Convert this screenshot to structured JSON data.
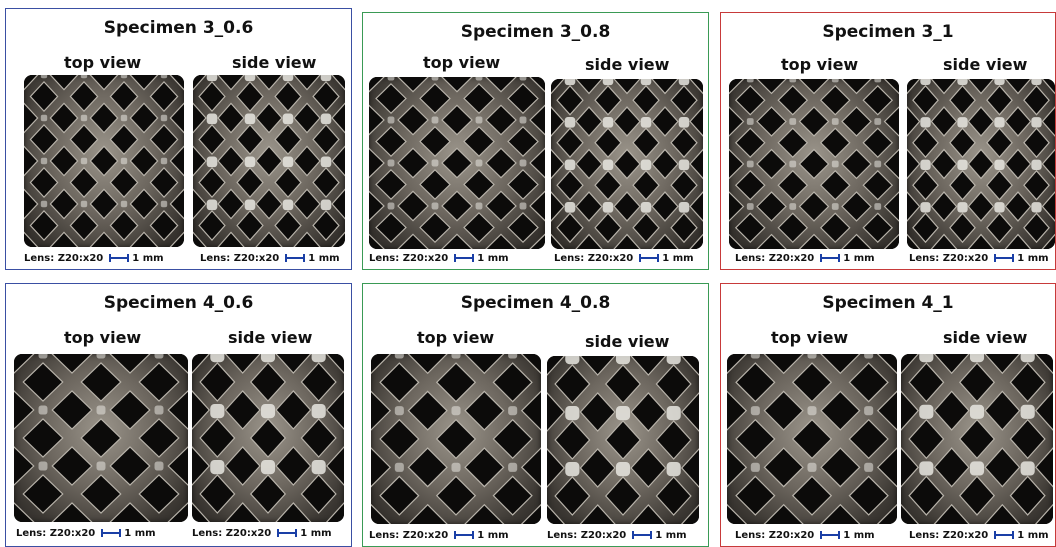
{
  "panels": [
    {
      "title": "Specimen 3_0.6",
      "border": "#3a4fa3",
      "views": [
        "top view",
        "side view"
      ],
      "captions": [
        "Lens: Z20:x20",
        "1 mm",
        "Lens: Z20:x20",
        "1 mm"
      ]
    },
    {
      "title": "Specimen 3_0.8",
      "border": "#3a9a55",
      "views": [
        "top view",
        "side view"
      ],
      "captions": [
        "Lens: Z20:x20",
        "1 mm",
        "Lens: Z20:x20",
        "1 mm"
      ]
    },
    {
      "title": "Specimen 3_1",
      "border": "#c73a3a",
      "views": [
        "top view",
        "side view"
      ],
      "captions": [
        "Lens: Z20:x20",
        "1 mm",
        "Lens: Z20:x20",
        "1 mm"
      ]
    },
    {
      "title": "Specimen 4_0.6",
      "border": "#3a4fa3",
      "views": [
        "top view",
        "side view"
      ],
      "captions": [
        "Lens: Z20:x20",
        "1 mm",
        "Lens: Z20:x20",
        "1 mm"
      ]
    },
    {
      "title": "Specimen 4_0.8",
      "border": "#3a9a55",
      "views": [
        "top view",
        "side view"
      ],
      "captions": [
        "Lens: Z20:x20",
        "1 mm",
        "Lens: Z20:x20",
        "1 mm"
      ]
    },
    {
      "title": "Specimen 4_1",
      "border": "#c73a3a",
      "views": [
        "top view",
        "side view"
      ],
      "captions": [
        "Lens: Z20:x20",
        "1 mm",
        "Lens: Z20:x20",
        "1 mm"
      ]
    }
  ],
  "colors": {
    "scale_bar": "#1a3fa6",
    "lattice_dark": "#0c0b0a",
    "lattice_metal": "#8a857c",
    "node_highlight": "#e8e6e0"
  },
  "image_semantics": "metal lattice specimen micrograph"
}
